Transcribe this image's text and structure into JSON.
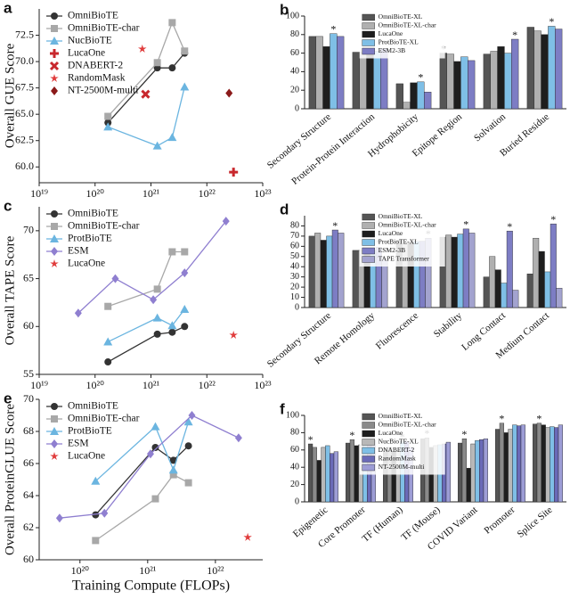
{
  "chart_data": [
    {
      "panel": "a",
      "type": "line",
      "ylabel": "Overall GUE Score",
      "xscale": "log",
      "xlim": [
        1e+19,
        1e+23
      ],
      "xticks": [
        {
          "value": 1e+19,
          "label": "10¹⁹"
        },
        {
          "value": 1e+20,
          "label": "10²⁰"
        },
        {
          "value": 1e+21,
          "label": "10²¹"
        },
        {
          "value": 1e+22,
          "label": "10²²"
        },
        {
          "value": 1e+23,
          "label": "10²³"
        }
      ],
      "ylim": [
        58.5,
        75
      ],
      "yticks": [
        {
          "value": 60,
          "label": "60.0"
        },
        62.5,
        {
          "value": 65,
          "label": "65.0"
        },
        67.5,
        {
          "value": 70,
          "label": "70.0"
        },
        72.5
      ],
      "legend": "upper left",
      "series": [
        {
          "name": "OmniBioTE",
          "color": "#333333",
          "marker": "circle",
          "x": [
            1.7e+20,
            1.3e+21,
            2.4e+21,
            4e+21
          ],
          "values": [
            64.2,
            69.4,
            69.4,
            70.8
          ]
        },
        {
          "name": "OmniBioTE-char",
          "color": "#a8a8a8",
          "marker": "square",
          "x": [
            1.7e+20,
            1.3e+21,
            2.4e+21,
            4e+21
          ],
          "values": [
            64.8,
            69.9,
            73.7,
            71
          ]
        },
        {
          "name": "NucBioTE",
          "color": "#6bb5e0",
          "marker": "triangle",
          "x": [
            1.7e+20,
            1.3e+21,
            2.4e+21,
            4e+21
          ],
          "values": [
            63.8,
            62,
            62.8,
            67.6
          ]
        },
        {
          "name": "LucaOne",
          "color": "#c8282d",
          "marker": "plus",
          "x": [
            3e+22
          ],
          "values": [
            59.5
          ]
        },
        {
          "name": "DNABERT-2",
          "color": "#c8282d",
          "marker": "x",
          "x": [
            8e+20
          ],
          "values": [
            66.9
          ]
        },
        {
          "name": "RandomMask",
          "color": "#e03c3c",
          "marker": "star",
          "x": [
            7e+20
          ],
          "values": [
            71.2
          ]
        },
        {
          "name": "NT-2500M-multi",
          "color": "#8b1a1a",
          "marker": "diamond",
          "x": [
            2.5e+22
          ],
          "values": [
            67
          ]
        }
      ]
    },
    {
      "panel": "b",
      "type": "bar",
      "categories": [
        "Secondary Structure",
        "Protein-Protein Interaction",
        "Hydrophobicity",
        "Epitope Region",
        "Solvation",
        "Buried Residue"
      ],
      "ylim": [
        0,
        100
      ],
      "yticks": [
        0,
        20,
        40,
        60,
        80,
        100
      ],
      "legend": "upper center",
      "series": [
        {
          "name": "OmniBioTE-XL",
          "color": "#555555",
          "values": [
            78,
            61,
            27,
            60,
            59,
            88
          ]
        },
        {
          "name": "OmniBioTE-XL-char",
          "color": "#b0b0b0",
          "values": [
            78,
            61,
            7,
            59,
            62,
            84
          ]
        },
        {
          "name": "LucaOne",
          "color": "#1e1e1e",
          "values": [
            67,
            60,
            28,
            51,
            67,
            80
          ]
        },
        {
          "name": "ProtBioTE-XL",
          "color": "#7fbfe6",
          "values": [
            81,
            62,
            29,
            56,
            60,
            89
          ]
        },
        {
          "name": "ESM2-3B",
          "color": "#7d7dc4",
          "values": [
            78,
            65,
            18,
            52,
            75,
            86
          ]
        }
      ],
      "annotations": [
        {
          "text": "*",
          "category": 0,
          "series": 3
        },
        {
          "text": "*",
          "category": 1,
          "series": 4
        },
        {
          "text": "*",
          "category": 2,
          "series": 3
        },
        {
          "text": "*",
          "category": 3,
          "series": 0
        },
        {
          "text": "*",
          "category": 4,
          "series": 4
        },
        {
          "text": "*",
          "category": 5,
          "series": 3
        }
      ]
    },
    {
      "panel": "c",
      "type": "line",
      "ylabel": "Overall TAPE Score",
      "xscale": "log",
      "xlim": [
        1e+19,
        1e+23
      ],
      "xticks": [
        {
          "value": 1e+19,
          "label": "10¹⁹"
        },
        {
          "value": 1e+20,
          "label": "10²⁰"
        },
        {
          "value": 1e+21,
          "label": "10²¹"
        },
        {
          "value": 1e+22,
          "label": "10²²"
        },
        {
          "value": 1e+23,
          "label": "10²³"
        }
      ],
      "ylim": [
        55,
        72.5
      ],
      "yticks": [
        55,
        60,
        65,
        70
      ],
      "legend": "upper left",
      "series": [
        {
          "name": "OmniBioTE",
          "color": "#333333",
          "marker": "circle",
          "x": [
            1.7e+20,
            1.3e+21,
            2.4e+21,
            4e+21
          ],
          "values": [
            56.3,
            59.2,
            59.4,
            60
          ]
        },
        {
          "name": "OmniBioTE-char",
          "color": "#a8a8a8",
          "marker": "square",
          "x": [
            1.7e+20,
            1.3e+21,
            2.4e+21,
            4e+21
          ],
          "values": [
            62.1,
            63.9,
            67.8,
            67.8
          ]
        },
        {
          "name": "ProtBioTE",
          "color": "#6bb5e0",
          "marker": "triangle",
          "x": [
            1.7e+20,
            1.3e+21,
            2.4e+21,
            4e+21
          ],
          "values": [
            58.4,
            60.9,
            60.1,
            61.8
          ]
        },
        {
          "name": "ESM",
          "color": "#8f7fd0",
          "marker": "diamond",
          "x": [
            5e+19,
            2.3e+20,
            1.1e+21,
            4e+21,
            2.2e+22
          ],
          "values": [
            61.4,
            65,
            62.8,
            65.6,
            71
          ]
        },
        {
          "name": "LucaOne",
          "color": "#e03c3c",
          "marker": "star",
          "x": [
            3e+22
          ],
          "values": [
            59.1
          ]
        }
      ]
    },
    {
      "panel": "d",
      "type": "bar",
      "categories": [
        "Secondary Structure",
        "Remote Homology",
        "Fluorescence",
        "Stability",
        "Long Contact",
        "Medium Contact"
      ],
      "ylim": [
        0,
        90
      ],
      "yticks": [
        0,
        10,
        20,
        30,
        40,
        50,
        60,
        70,
        80
      ],
      "legend": "upper center",
      "series": [
        {
          "name": "OmniBioTE-XL",
          "color": "#555555",
          "values": [
            70,
            56,
            66,
            69,
            30,
            33
          ]
        },
        {
          "name": "OmniBioTE-XL-char",
          "color": "#b0b0b0",
          "values": [
            73,
            56,
            63,
            71,
            50,
            68
          ]
        },
        {
          "name": "LucaOne",
          "color": "#1e1e1e",
          "values": [
            66,
            55,
            64,
            69,
            37,
            55
          ]
        },
        {
          "name": "ProtBioTE-XL",
          "color": "#7fbfe6",
          "values": [
            70,
            56,
            65,
            72,
            24,
            35
          ]
        },
        {
          "name": "ESM2-3B",
          "color": "#7d7dc4",
          "values": [
            76,
            59,
            65,
            77,
            75,
            82
          ]
        },
        {
          "name": "TAPE Transformer",
          "color": "#a3a3cf",
          "values": [
            73,
            47,
            68,
            73,
            17,
            19
          ]
        }
      ],
      "annotations": [
        {
          "text": "*",
          "category": 0,
          "series": 4
        },
        {
          "text": "*",
          "category": 1,
          "series": 4
        },
        {
          "text": "*",
          "category": 2,
          "series": 5
        },
        {
          "text": "*",
          "category": 3,
          "series": 4
        },
        {
          "text": "*",
          "category": 4,
          "series": 4
        },
        {
          "text": "*",
          "category": 5,
          "series": 4
        }
      ]
    },
    {
      "panel": "e",
      "type": "line",
      "ylabel": "Overall ProteinGLUE Score",
      "xlabel": "Training Compute (FLOPs)",
      "xscale": "log",
      "xlim": [
        2.5e+19,
        5e+22
      ],
      "xticks": [
        {
          "value": 1e+20,
          "label": "10²⁰"
        },
        {
          "value": 1e+21,
          "label": "10²¹"
        },
        {
          "value": 1e+22,
          "label": "10²²"
        }
      ],
      "ylim": [
        60,
        70
      ],
      "yticks": [
        60,
        62,
        64,
        66,
        68,
        70
      ],
      "legend": "upper left",
      "series": [
        {
          "name": "OmniBioTE",
          "color": "#333333",
          "marker": "circle",
          "x": [
            1.7e+20,
            1.3e+21,
            2.4e+21,
            4e+21
          ],
          "values": [
            62.8,
            67,
            66.2,
            67.1
          ]
        },
        {
          "name": "OmniBioTE-char",
          "color": "#a8a8a8",
          "marker": "square",
          "x": [
            1.7e+20,
            1.3e+21,
            2.4e+21,
            4e+21
          ],
          "values": [
            61.2,
            63.8,
            65.3,
            64.8
          ]
        },
        {
          "name": "ProtBioTE",
          "color": "#6bb5e0",
          "marker": "triangle",
          "x": [
            1.7e+20,
            1.3e+21,
            2.4e+21,
            4e+21
          ],
          "values": [
            64.9,
            68.3,
            65.6,
            68.6
          ]
        },
        {
          "name": "ESM",
          "color": "#8f7fd0",
          "marker": "diamond",
          "x": [
            5e+19,
            2.3e+20,
            1.1e+21,
            4.5e+21,
            2.2e+22
          ],
          "values": [
            62.6,
            62.9,
            66.6,
            69,
            67.6
          ]
        },
        {
          "name": "LucaOne",
          "color": "#e03c3c",
          "marker": "star",
          "x": [
            3e+22
          ],
          "values": [
            61.4
          ]
        }
      ]
    },
    {
      "panel": "f",
      "type": "bar",
      "categories": [
        "Epigenetic",
        "Core Promoter",
        "TF (Human)",
        "TF (Mouse)",
        "COVID Variant",
        "Promoter",
        "Splice Site"
      ],
      "ylim": [
        0,
        100
      ],
      "yticks": [
        0,
        20,
        40,
        60,
        80,
        100
      ],
      "legend": "upper center",
      "series": [
        {
          "name": "OmniBioTE-XL",
          "color": "#555555",
          "values": [
            67,
            68,
            60,
            73,
            68,
            84,
            90
          ]
        },
        {
          "name": "OmniBioTE-XL-char",
          "color": "#8a8a8a",
          "values": [
            63,
            72,
            63,
            74,
            73,
            91,
            91
          ]
        },
        {
          "name": "LucaOne",
          "color": "#1e1e1e",
          "values": [
            48,
            65,
            58,
            63,
            39,
            80,
            89
          ]
        },
        {
          "name": "NucBioTE-XL",
          "color": "#b8b8b8",
          "values": [
            63,
            66,
            59,
            65,
            67,
            84,
            86
          ]
        },
        {
          "name": "DNABERT-2",
          "color": "#7fbfe6",
          "values": [
            65,
            70,
            70,
            66,
            71,
            89,
            87
          ]
        },
        {
          "name": "RandomMask",
          "color": "#6a6ab8",
          "values": [
            56,
            72,
            70,
            67,
            72,
            88,
            86
          ]
        },
        {
          "name": "NT-2500M-multi",
          "color": "#9d9dd6",
          "values": [
            58,
            71,
            63,
            69,
            73,
            89,
            89
          ]
        }
      ],
      "annotations": [
        {
          "text": "*",
          "category": 0,
          "series": 0
        },
        {
          "text": "*",
          "category": 1,
          "series": 1
        },
        {
          "text": "*",
          "category": 2,
          "series": 4
        },
        {
          "text": "*",
          "category": 3,
          "series": 1
        },
        {
          "text": "*",
          "category": 4,
          "series": 1
        },
        {
          "text": "*",
          "category": 5,
          "series": 1
        },
        {
          "text": "*",
          "category": 6,
          "series": 1
        }
      ]
    }
  ]
}
